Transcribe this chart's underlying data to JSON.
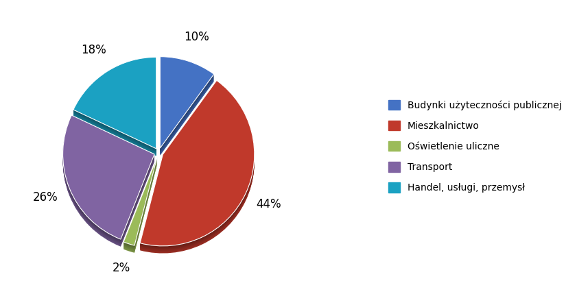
{
  "labels": [
    "Budynki użyteczności publicznej",
    "Mieszkalnictwo",
    "Oświetlenie uliczne",
    "Transport",
    "Handel, usługi, przemysł"
  ],
  "values": [
    10,
    44,
    2,
    26,
    18
  ],
  "colors": [
    "#4472C4",
    "#C0392B",
    "#9BBB59",
    "#8064A2",
    "#1BA1C2"
  ],
  "dark_colors": [
    "#2E5090",
    "#8B1A1A",
    "#6B8A2A",
    "#5A4572",
    "#0D6B80"
  ],
  "explode": [
    0.05,
    0.05,
    0.05,
    0.05,
    0.05
  ],
  "pct_labels": [
    "10%",
    "44%",
    "2%",
    "26%",
    "18%"
  ],
  "startangle": 90,
  "figsize": [
    8.41,
    4.45
  ],
  "dpi": 100,
  "legend_fontsize": 10,
  "pct_fontsize": 12,
  "background_color": "#FFFFFF",
  "depth": 0.08,
  "n_depth_layers": 12
}
